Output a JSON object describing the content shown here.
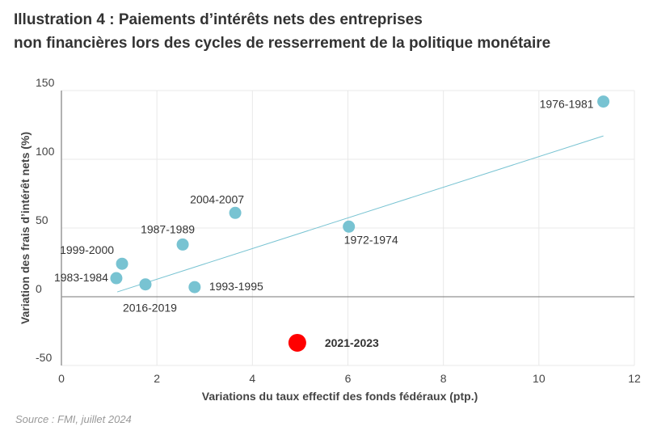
{
  "title_line1": "Illustration 4 : Paiements d’intérêts nets des entreprises",
  "title_line2": "non financières lors des cycles de resserrement de la politique monétaire",
  "source": "Source : FMI, juillet 2024",
  "chart_data": {
    "type": "scatter",
    "xlabel": "Variations du taux effectif des fonds fédéraux (ptp.)",
    "ylabel": "Variation des frais d’intérêt nets (%)",
    "xlim": [
      0,
      12
    ],
    "ylim": [
      -50,
      150
    ],
    "xticks": [
      0,
      2,
      4,
      6,
      8,
      10,
      12
    ],
    "yticks": [
      -50,
      0,
      50,
      100,
      150
    ],
    "grid": true,
    "colors": {
      "points": "#78c3d2",
      "highlight": "#ff0000",
      "trend": "#78c3d2"
    },
    "points": [
      {
        "label": "1983-1984",
        "x": 1.15,
        "y": 13.5
      },
      {
        "label": "1999-2000",
        "x": 1.27,
        "y": 24
      },
      {
        "label": "2016-2019",
        "x": 1.76,
        "y": 9
      },
      {
        "label": "1987-1989",
        "x": 2.54,
        "y": 38
      },
      {
        "label": "1993-1995",
        "x": 2.79,
        "y": 7
      },
      {
        "label": "2004-2007",
        "x": 3.64,
        "y": 61
      },
      {
        "label": "1972-1974",
        "x": 6.02,
        "y": 51
      },
      {
        "label": "1976-1981",
        "x": 11.35,
        "y": 142
      },
      {
        "label": "2021-2023",
        "x": 4.94,
        "y": -33.5,
        "highlight": true
      }
    ],
    "trendline": {
      "x": [
        1.17,
        11.35
      ],
      "y": [
        3.5,
        117
      ]
    }
  }
}
